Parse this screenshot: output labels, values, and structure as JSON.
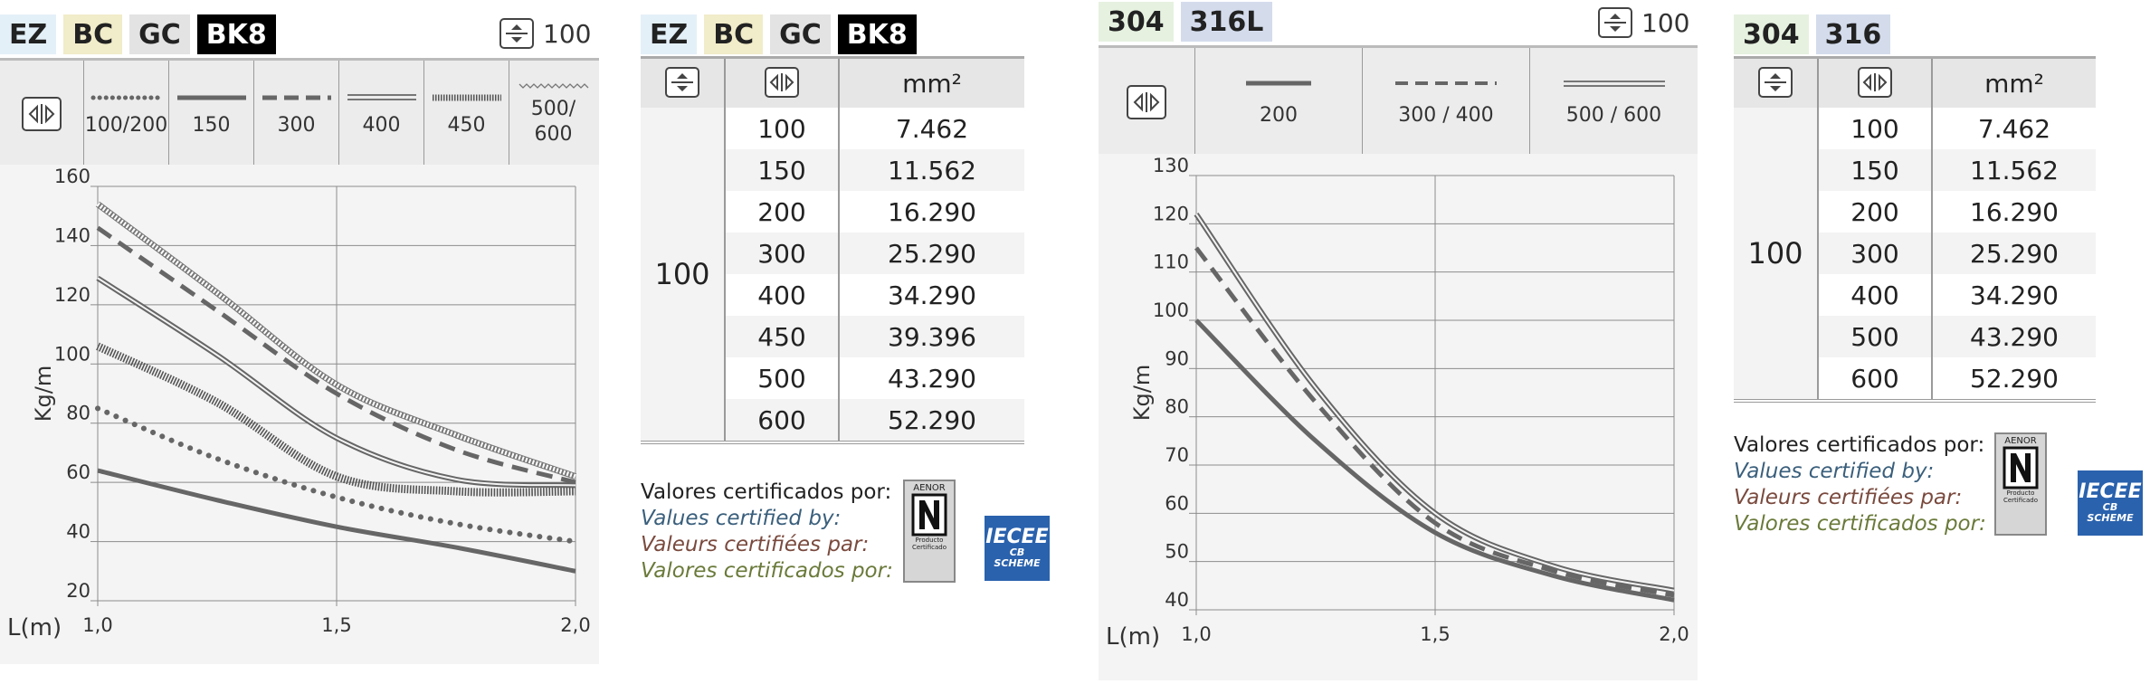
{
  "panel1": {
    "badges": [
      "EZ",
      "BC",
      "GC",
      "BK8"
    ],
    "capacity": "100",
    "legend_widths": [
      "100/200",
      "150",
      "300",
      "400",
      "450",
      "500/\n600"
    ],
    "chart_data": {
      "type": "line",
      "title": "",
      "xlabel": "L(m)",
      "ylabel": "Kg/m",
      "xlim": [
        1.0,
        2.0
      ],
      "ylim": [
        20,
        160
      ],
      "x_ticks": [
        "1,0",
        "1,5",
        "2,0"
      ],
      "y_ticks": [
        "20",
        "40",
        "60",
        "80",
        "100",
        "120",
        "140",
        "160"
      ],
      "grid": true,
      "series": [
        {
          "name": "100/200",
          "style": "dotted",
          "x": [
            1.0,
            1.25,
            1.5,
            1.75,
            2.0
          ],
          "y": [
            85,
            68,
            55,
            46,
            40
          ]
        },
        {
          "name": "150",
          "style": "solid",
          "x": [
            1.0,
            1.25,
            1.5,
            1.75,
            2.0
          ],
          "y": [
            64,
            54,
            45,
            38,
            30
          ]
        },
        {
          "name": "300",
          "style": "dashed",
          "x": [
            1.0,
            1.25,
            1.5,
            1.75,
            2.0
          ],
          "y": [
            146,
            118,
            90,
            71,
            60
          ]
        },
        {
          "name": "400",
          "style": "double",
          "x": [
            1.0,
            1.25,
            1.5,
            1.75,
            2.0
          ],
          "y": [
            129,
            103,
            75,
            61,
            59
          ]
        },
        {
          "name": "450",
          "style": "hatched",
          "x": [
            1.0,
            1.25,
            1.5,
            1.75,
            2.0
          ],
          "y": [
            106,
            87,
            62,
            57,
            57
          ]
        },
        {
          "name": "500/600",
          "style": "zigzag",
          "x": [
            1.0,
            1.25,
            1.5,
            1.75,
            2.0
          ],
          "y": [
            154,
            124,
            93,
            76,
            62
          ]
        }
      ]
    }
  },
  "table1": {
    "badges": [
      "EZ",
      "BC",
      "GC",
      "BK8"
    ],
    "col_mm2": "mm²",
    "group_value": "100",
    "rows": [
      {
        "w": "100",
        "area": "7.462"
      },
      {
        "w": "150",
        "area": "11.562"
      },
      {
        "w": "200",
        "area": "16.290"
      },
      {
        "w": "300",
        "area": "25.290"
      },
      {
        "w": "400",
        "area": "34.290"
      },
      {
        "w": "450",
        "area": "39.396"
      },
      {
        "w": "500",
        "area": "43.290"
      },
      {
        "w": "600",
        "area": "52.290"
      }
    ]
  },
  "panel2": {
    "badges": [
      "304",
      "316L"
    ],
    "capacity": "100",
    "legend_widths": [
      "200",
      "300 / 400",
      "500 / 600"
    ],
    "chart_data": {
      "type": "line",
      "title": "",
      "xlabel": "L(m)",
      "ylabel": "Kg/m",
      "xlim": [
        1.0,
        2.0
      ],
      "ylim": [
        40,
        130
      ],
      "x_ticks": [
        "1,0",
        "1,5",
        "2,0"
      ],
      "y_ticks": [
        "40",
        "50",
        "60",
        "70",
        "80",
        "90",
        "100",
        "110",
        "120",
        "130"
      ],
      "grid": true,
      "series": [
        {
          "name": "200",
          "style": "solid",
          "x": [
            1.0,
            1.25,
            1.5,
            1.75,
            2.0
          ],
          "y": [
            100,
            75,
            56,
            47,
            42
          ]
        },
        {
          "name": "300 / 400",
          "style": "dashed",
          "x": [
            1.0,
            1.25,
            1.5,
            1.75,
            2.0
          ],
          "y": [
            115,
            83,
            58,
            48,
            43
          ]
        },
        {
          "name": "500 / 600",
          "style": "double",
          "x": [
            1.0,
            1.25,
            1.5,
            1.75,
            2.0
          ],
          "y": [
            122,
            86,
            60,
            49,
            44
          ]
        }
      ]
    }
  },
  "table2": {
    "badges": [
      "304",
      "316"
    ],
    "col_mm2": "mm²",
    "group_value": "100",
    "rows": [
      {
        "w": "100",
        "area": "7.462"
      },
      {
        "w": "150",
        "area": "11.562"
      },
      {
        "w": "200",
        "area": "16.290"
      },
      {
        "w": "300",
        "area": "25.290"
      },
      {
        "w": "400",
        "area": "34.290"
      },
      {
        "w": "500",
        "area": "43.290"
      },
      {
        "w": "600",
        "area": "52.290"
      }
    ]
  },
  "cert": {
    "lines": [
      "Valores certificados por:",
      "Values certified by:",
      "Valeurs certifiées par:",
      "Valores certificados por:"
    ],
    "aenor_title": "AENOR",
    "aenor_sub": "Producto\nCertificado",
    "iecee_main": "IECEE",
    "iecee_sub": "CB\nSCHEME"
  },
  "colors": {
    "line": "#666666",
    "grid": "#8c8c8c",
    "chart_bg": "#f4f4f4",
    "legend_bg": "#ececec",
    "iecee_blue": "#2a62ad"
  }
}
